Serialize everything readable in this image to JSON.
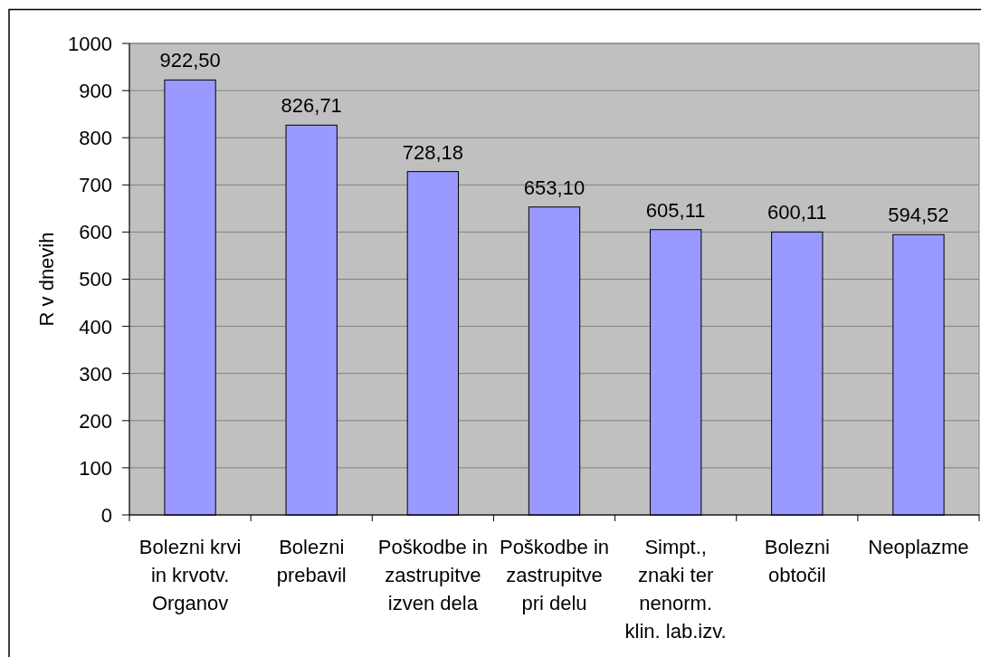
{
  "chart_data": {
    "type": "bar",
    "ylabel": "R v dnevih",
    "categories": [
      "Bolezni krvi\nin krvotv.\nOrganov",
      "Bolezni\nprebavil",
      "Poškodbe in\nzastrupitve\nizven dela",
      "Poškodbe in\nzastrupitve\npri delu",
      "Simpt.,\nznaki ter\nnenorm.\nklin. lab.izv.",
      "Bolezni\nobtočil",
      "Neoplazme"
    ],
    "values": [
      922.5,
      826.71,
      728.18,
      653.1,
      605.11,
      600.11,
      594.52
    ],
    "value_labels": [
      "922,50",
      "826,71",
      "728,18",
      "653,10",
      "605,11",
      "600,11",
      "594,52"
    ],
    "color": "#9999ff",
    "ylim": [
      0,
      1000
    ],
    "yticks": [
      0,
      100,
      200,
      300,
      400,
      500,
      600,
      700,
      800,
      900,
      1000
    ],
    "grid": "y"
  }
}
